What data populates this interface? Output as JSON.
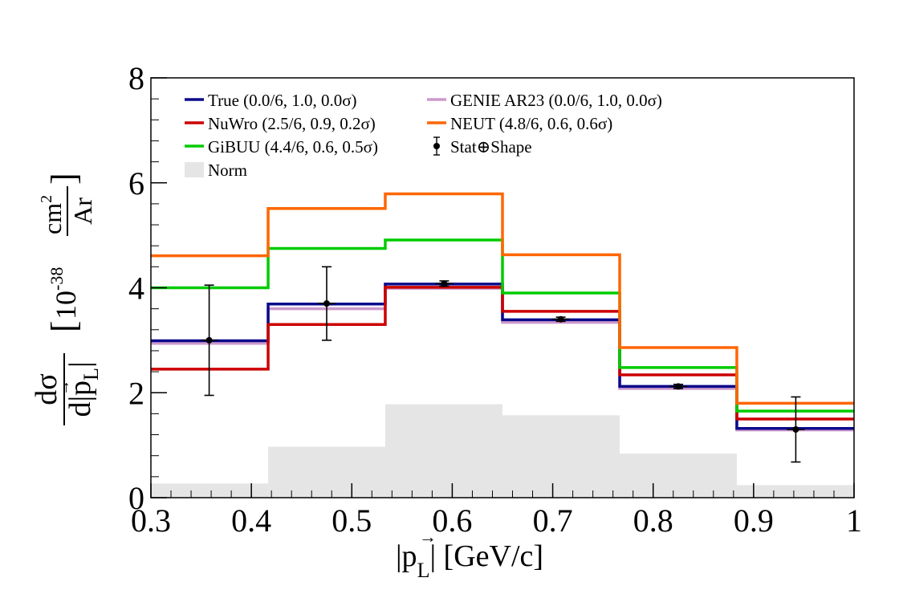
{
  "chart_data": {
    "type": "histogram",
    "xlabel": "|p⃗L| [GeV/c]",
    "x_title": {
      "prefix": "|p",
      "subscript": "L",
      "suffix": "| [GeV/c]"
    },
    "y_title": {
      "numerator": "dσ",
      "denominator_prefix": "d|p",
      "denominator_subscript": "L",
      "denominator_suffix": "|",
      "unit_prefix": "10",
      "unit_exponent": "-38",
      "unit_numerator": "cm",
      "unit_numerator_exponent": "2",
      "unit_denominator": "Ar"
    },
    "xlim": [
      0.3,
      1.0
    ],
    "ylim": [
      0,
      8
    ],
    "x_ticks": [
      "0.3",
      "0.4",
      "0.5",
      "0.6",
      "0.7",
      "0.8",
      "0.9",
      "1"
    ],
    "y_ticks": [
      "0",
      "2",
      "4",
      "6",
      "8"
    ],
    "bin_edges": [
      0.3,
      0.4167,
      0.5333,
      0.65,
      0.7667,
      0.8833,
      1.0
    ],
    "norm_band": {
      "name": "Norm",
      "color": "#e5e5e5",
      "values": [
        0.27,
        0.97,
        1.78,
        1.57,
        0.84,
        0.24
      ]
    },
    "series": [
      {
        "name": "GENIE AR23 (0.0/6, 1.0, 0.0σ)",
        "color": "#cc99cc",
        "values": [
          2.94,
          3.6,
          3.99,
          3.34,
          2.08,
          1.29
        ]
      },
      {
        "name": "True (0.0/6, 1.0, 0.0σ)",
        "color": "#0a0a8c",
        "values": [
          2.99,
          3.69,
          4.07,
          3.39,
          2.12,
          1.32
        ]
      },
      {
        "name": "NuWro (2.5/6, 0.9, 0.2σ)",
        "color": "#cc0000",
        "values": [
          2.45,
          3.3,
          4.01,
          3.55,
          2.34,
          1.5
        ]
      },
      {
        "name": "GiBUU (4.4/6, 0.6, 0.5σ)",
        "color": "#00cc00",
        "values": [
          4.0,
          4.75,
          4.91,
          3.9,
          2.48,
          1.65
        ]
      },
      {
        "name": "NEUT (4.8/6, 0.6, 0.6σ)",
        "color": "#ff6600",
        "values": [
          4.61,
          5.51,
          5.79,
          4.63,
          2.86,
          1.8
        ]
      }
    ],
    "data_points": {
      "name": "Stat⊕Shape",
      "x": [
        0.358,
        0.475,
        0.592,
        0.708,
        0.825,
        0.942
      ],
      "y": [
        3.0,
        3.7,
        4.08,
        3.4,
        2.12,
        1.3
      ],
      "err_low": [
        1.05,
        0.7,
        0.05,
        0.04,
        0.04,
        0.62
      ],
      "err_high": [
        1.05,
        0.7,
        0.05,
        0.04,
        0.04,
        0.62
      ]
    },
    "legend": {
      "placement": "top-left",
      "order": [
        {
          "label": "True (0.0/6, 1.0, 0.0σ)",
          "kind": "line",
          "color": "#0a0a8c"
        },
        {
          "label": "GENIE AR23 (0.0/6, 1.0, 0.0σ)",
          "kind": "line",
          "color": "#cc99cc"
        },
        {
          "label": "NuWro (2.5/6, 0.9, 0.2σ)",
          "kind": "line",
          "color": "#cc0000"
        },
        {
          "label": "NEUT (4.8/6, 0.6, 0.6σ)",
          "kind": "line",
          "color": "#ff6600"
        },
        {
          "label": "GiBUU (4.4/6, 0.6, 0.5σ)",
          "kind": "line",
          "color": "#00cc00"
        },
        {
          "label": "Stat⊕Shape",
          "kind": "marker",
          "color": "#000000"
        },
        {
          "label": "Norm",
          "kind": "box",
          "color": "#e5e5e5"
        }
      ]
    }
  }
}
